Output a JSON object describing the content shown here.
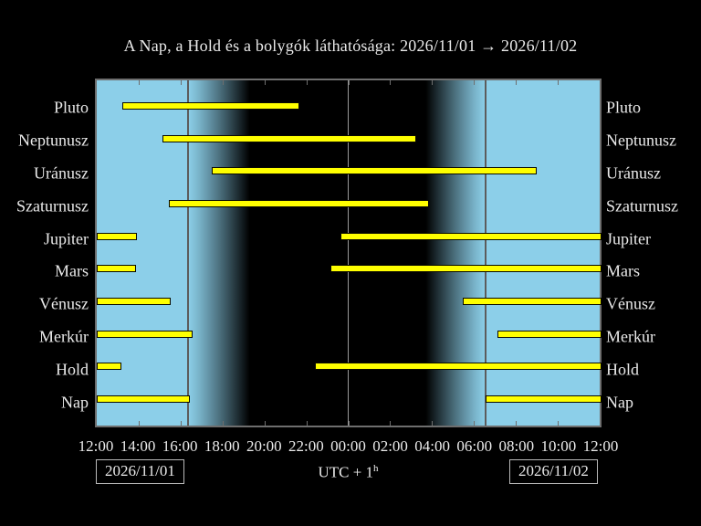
{
  "title": "A Nap, a Hold és a bolygók láthatósága: 2026/11/01 → 2026/11/02",
  "footer": {
    "date_left": "2026/11/01",
    "date_right": "2026/11/02",
    "timezone_prefix": "UTC + 1",
    "timezone_superscript": "h"
  },
  "colors": {
    "background": "#000000",
    "day_sky": "#8ccfe9",
    "night_sky": "#000000",
    "bar_fill": "#ffff00",
    "bar_outline": "#0a0a00",
    "frame_gray": "#6e6e6e",
    "sun_line_gray": "#5c5c5c",
    "midnight_line": "#9a9a9a",
    "text": "#eaeaea"
  },
  "chart_data": {
    "type": "bar",
    "subtype": "horizontal-visibility-intervals",
    "title": "A Nap, a Hold és a bolygók láthatósága: 2026/11/01 → 2026/11/02",
    "xlabel": "UTC + 1h",
    "ylabel": "",
    "x_axis": {
      "start_label": "12:00 (2026/11/01)",
      "end_label": "12:00 (2026/11/02)",
      "hours_span": 24,
      "tick_step_hours": 2,
      "tick_labels": [
        "12:00",
        "14:00",
        "16:00",
        "18:00",
        "20:00",
        "22:00",
        "00:00",
        "02:00",
        "04:00",
        "06:00",
        "08:00",
        "10:00",
        "12:00"
      ]
    },
    "background_events": {
      "sunset_hours_after_start": 4.36,
      "sunset_clock": "16:22",
      "dusk_full_dark_hours_after_start": 7.3,
      "dawn_first_light_hours_after_start": 15.7,
      "sunrise_hours_after_start": 18.54,
      "sunrise_clock": "06:32",
      "midnight_hours_after_start": 12.0,
      "midnight_clock": "00:00"
    },
    "categories": [
      "Pluto",
      "Neptunusz",
      "Uránusz",
      "Szaturnusz",
      "Jupiter",
      "Mars",
      "Vénusz",
      "Merkúr",
      "Hold",
      "Nap"
    ],
    "series": [
      {
        "name": "Pluto",
        "segments": [
          {
            "start_h": 1.2,
            "end_h": 9.6,
            "start": "13:12",
            "end": "21:36"
          }
        ]
      },
      {
        "name": "Neptunusz",
        "segments": [
          {
            "start_h": 3.15,
            "end_h": 15.15,
            "start": "15:09",
            "end": "03:09"
          }
        ]
      },
      {
        "name": "Uránusz",
        "segments": [
          {
            "start_h": 5.5,
            "end_h": 20.9,
            "start": "17:30",
            "end": "08:54"
          }
        ]
      },
      {
        "name": "Szaturnusz",
        "segments": [
          {
            "start_h": 3.45,
            "end_h": 15.75,
            "start": "15:27",
            "end": "03:45"
          }
        ]
      },
      {
        "name": "Jupiter",
        "segments": [
          {
            "start_h": 0,
            "end_h": 1.85,
            "start": "12:00",
            "end": "13:51"
          },
          {
            "start_h": 11.65,
            "end_h": 24,
            "start": "23:39",
            "end": "12:00"
          }
        ]
      },
      {
        "name": "Mars",
        "segments": [
          {
            "start_h": 0,
            "end_h": 1.8,
            "start": "12:00",
            "end": "13:48"
          },
          {
            "start_h": 11.15,
            "end_h": 24,
            "start": "23:09",
            "end": "12:00"
          }
        ]
      },
      {
        "name": "Vénusz",
        "segments": [
          {
            "start_h": 0,
            "end_h": 3.45,
            "start": "12:00",
            "end": "15:27"
          },
          {
            "start_h": 17.45,
            "end_h": 24,
            "start": "05:27",
            "end": "12:00"
          }
        ]
      },
      {
        "name": "Merkúr",
        "segments": [
          {
            "start_h": 0,
            "end_h": 4.5,
            "start": "12:00",
            "end": "16:30"
          },
          {
            "start_h": 19.1,
            "end_h": 24,
            "start": "07:06",
            "end": "12:00"
          }
        ]
      },
      {
        "name": "Hold",
        "segments": [
          {
            "start_h": 0,
            "end_h": 1.1,
            "start": "12:00",
            "end": "13:06"
          },
          {
            "start_h": 10.4,
            "end_h": 24,
            "start": "22:24",
            "end": "12:00"
          }
        ]
      },
      {
        "name": "Nap",
        "segments": [
          {
            "start_h": 0,
            "end_h": 4.35,
            "start": "12:00",
            "end": "16:21"
          },
          {
            "start_h": 18.55,
            "end_h": 24,
            "start": "06:33",
            "end": "12:00"
          }
        ]
      }
    ],
    "legend": null,
    "grid": false
  }
}
